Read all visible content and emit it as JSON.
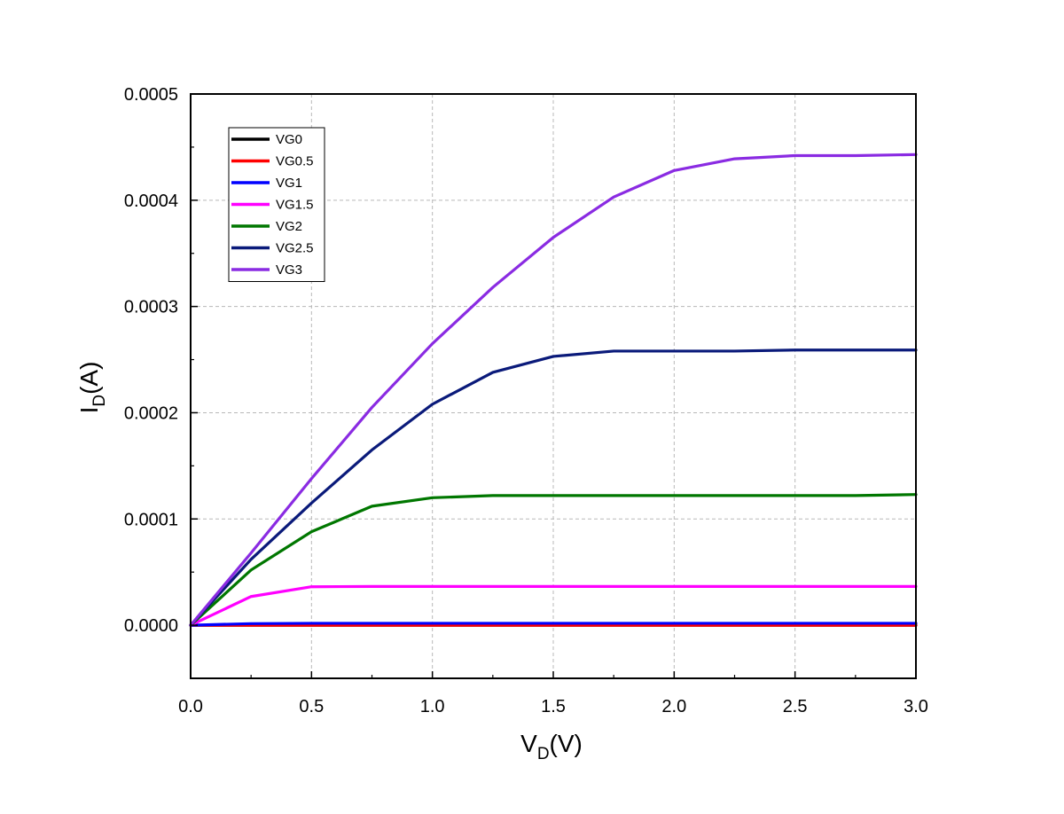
{
  "chart_data": {
    "type": "line",
    "title": "",
    "xlabel": {
      "main": "V",
      "sub": "D",
      "unit": "(V)"
    },
    "ylabel": {
      "main": "I",
      "sub": "D",
      "unit": "(A)"
    },
    "xlim": [
      0,
      3
    ],
    "ylim": [
      -5e-05,
      0.0005
    ],
    "xticks": [
      "0.0",
      "0.5",
      "1.0",
      "1.5",
      "2.0",
      "2.5",
      "3.0"
    ],
    "yticks": [
      "0.0000",
      "0.0001",
      "0.0002",
      "0.0003",
      "0.0004",
      "0.0005"
    ],
    "grid": true,
    "legend_position": "top-left",
    "x": [
      0,
      0.25,
      0.5,
      0.75,
      1.0,
      1.25,
      1.5,
      1.75,
      2.0,
      2.25,
      2.5,
      2.75,
      3.0
    ],
    "series": [
      {
        "name": "VG0",
        "color": "#000000",
        "values": [
          0,
          0,
          0,
          0,
          0,
          0,
          0,
          0,
          0,
          0,
          0,
          0,
          0
        ]
      },
      {
        "name": "VG0.5",
        "color": "#ff0000",
        "values": [
          0,
          0,
          0,
          0,
          0,
          0,
          0,
          0,
          0,
          0,
          0,
          0,
          0
        ]
      },
      {
        "name": "VG1",
        "color": "#0000ff",
        "values": [
          0,
          1.5e-06,
          1.8e-06,
          1.8e-06,
          1.8e-06,
          1.8e-06,
          1.8e-06,
          1.8e-06,
          1.8e-06,
          1.8e-06,
          1.8e-06,
          1.8e-06,
          1.8e-06
        ]
      },
      {
        "name": "VG1.5",
        "color": "#ff00ff",
        "values": [
          0,
          2.7e-05,
          3.62e-05,
          3.65e-05,
          3.65e-05,
          3.65e-05,
          3.65e-05,
          3.65e-05,
          3.65e-05,
          3.65e-05,
          3.65e-05,
          3.65e-05,
          3.65e-05
        ]
      },
      {
        "name": "VG2",
        "color": "#007700",
        "values": [
          0,
          5.2e-05,
          8.8e-05,
          0.000112,
          0.00012,
          0.000122,
          0.000122,
          0.000122,
          0.000122,
          0.000122,
          0.000122,
          0.000122,
          0.000123
        ]
      },
      {
        "name": "VG2.5",
        "color": "#0a1a7a",
        "values": [
          0,
          6.2e-05,
          0.000115,
          0.000165,
          0.000208,
          0.000238,
          0.000253,
          0.000258,
          0.000258,
          0.000258,
          0.000259,
          0.000259,
          0.000259
        ]
      },
      {
        "name": "VG3",
        "color": "#8a2be2",
        "values": [
          0,
          6.8e-05,
          0.000138,
          0.000205,
          0.000265,
          0.000318,
          0.000365,
          0.000403,
          0.000428,
          0.000439,
          0.000442,
          0.000442,
          0.000443
        ]
      }
    ]
  }
}
